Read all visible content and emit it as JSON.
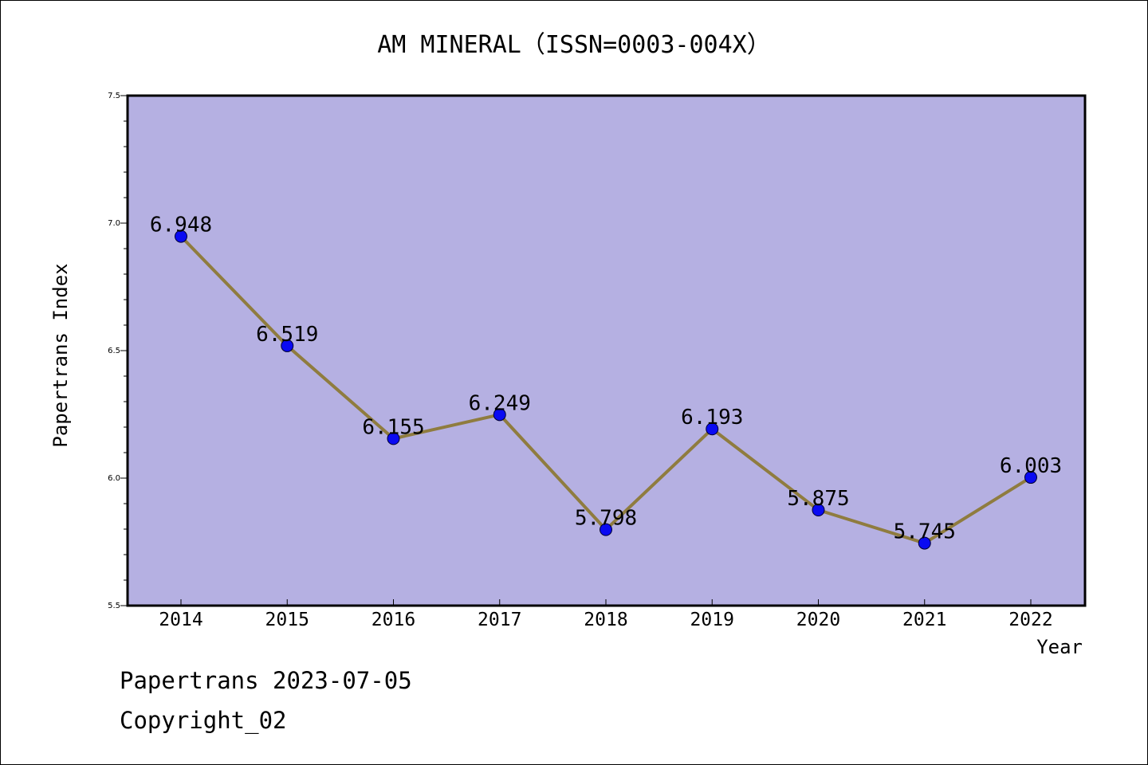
{
  "chart_data": {
    "type": "line",
    "title": "AM MINERAL（ISSN=0003-004X）",
    "xlabel": "Year",
    "ylabel": "Papertrans Index",
    "categories": [
      "2014",
      "2015",
      "2016",
      "2017",
      "2018",
      "2019",
      "2020",
      "2021",
      "2022"
    ],
    "series": [
      {
        "values": [
          6.948,
          6.519,
          6.155,
          6.249,
          5.798,
          6.193,
          5.875,
          5.745,
          6.003
        ],
        "data_labels": [
          "6.948",
          "6.519",
          "6.155",
          "6.249",
          "5.798",
          "6.193",
          "5.875",
          "5.745",
          "6.003"
        ]
      }
    ],
    "ylim": [
      5.5,
      7.5
    ],
    "yticks": [
      "5.5",
      "6.0",
      "6.5",
      "7.0",
      "7.5"
    ],
    "grid": false,
    "legend": "none",
    "colors": {
      "plot_background": "#b5b0e2",
      "line": "#8f7c3f",
      "marker": "#0a0af2"
    }
  },
  "footer": {
    "line1": "Papertrans 2023-07-05",
    "line2": "Copyright_02"
  }
}
